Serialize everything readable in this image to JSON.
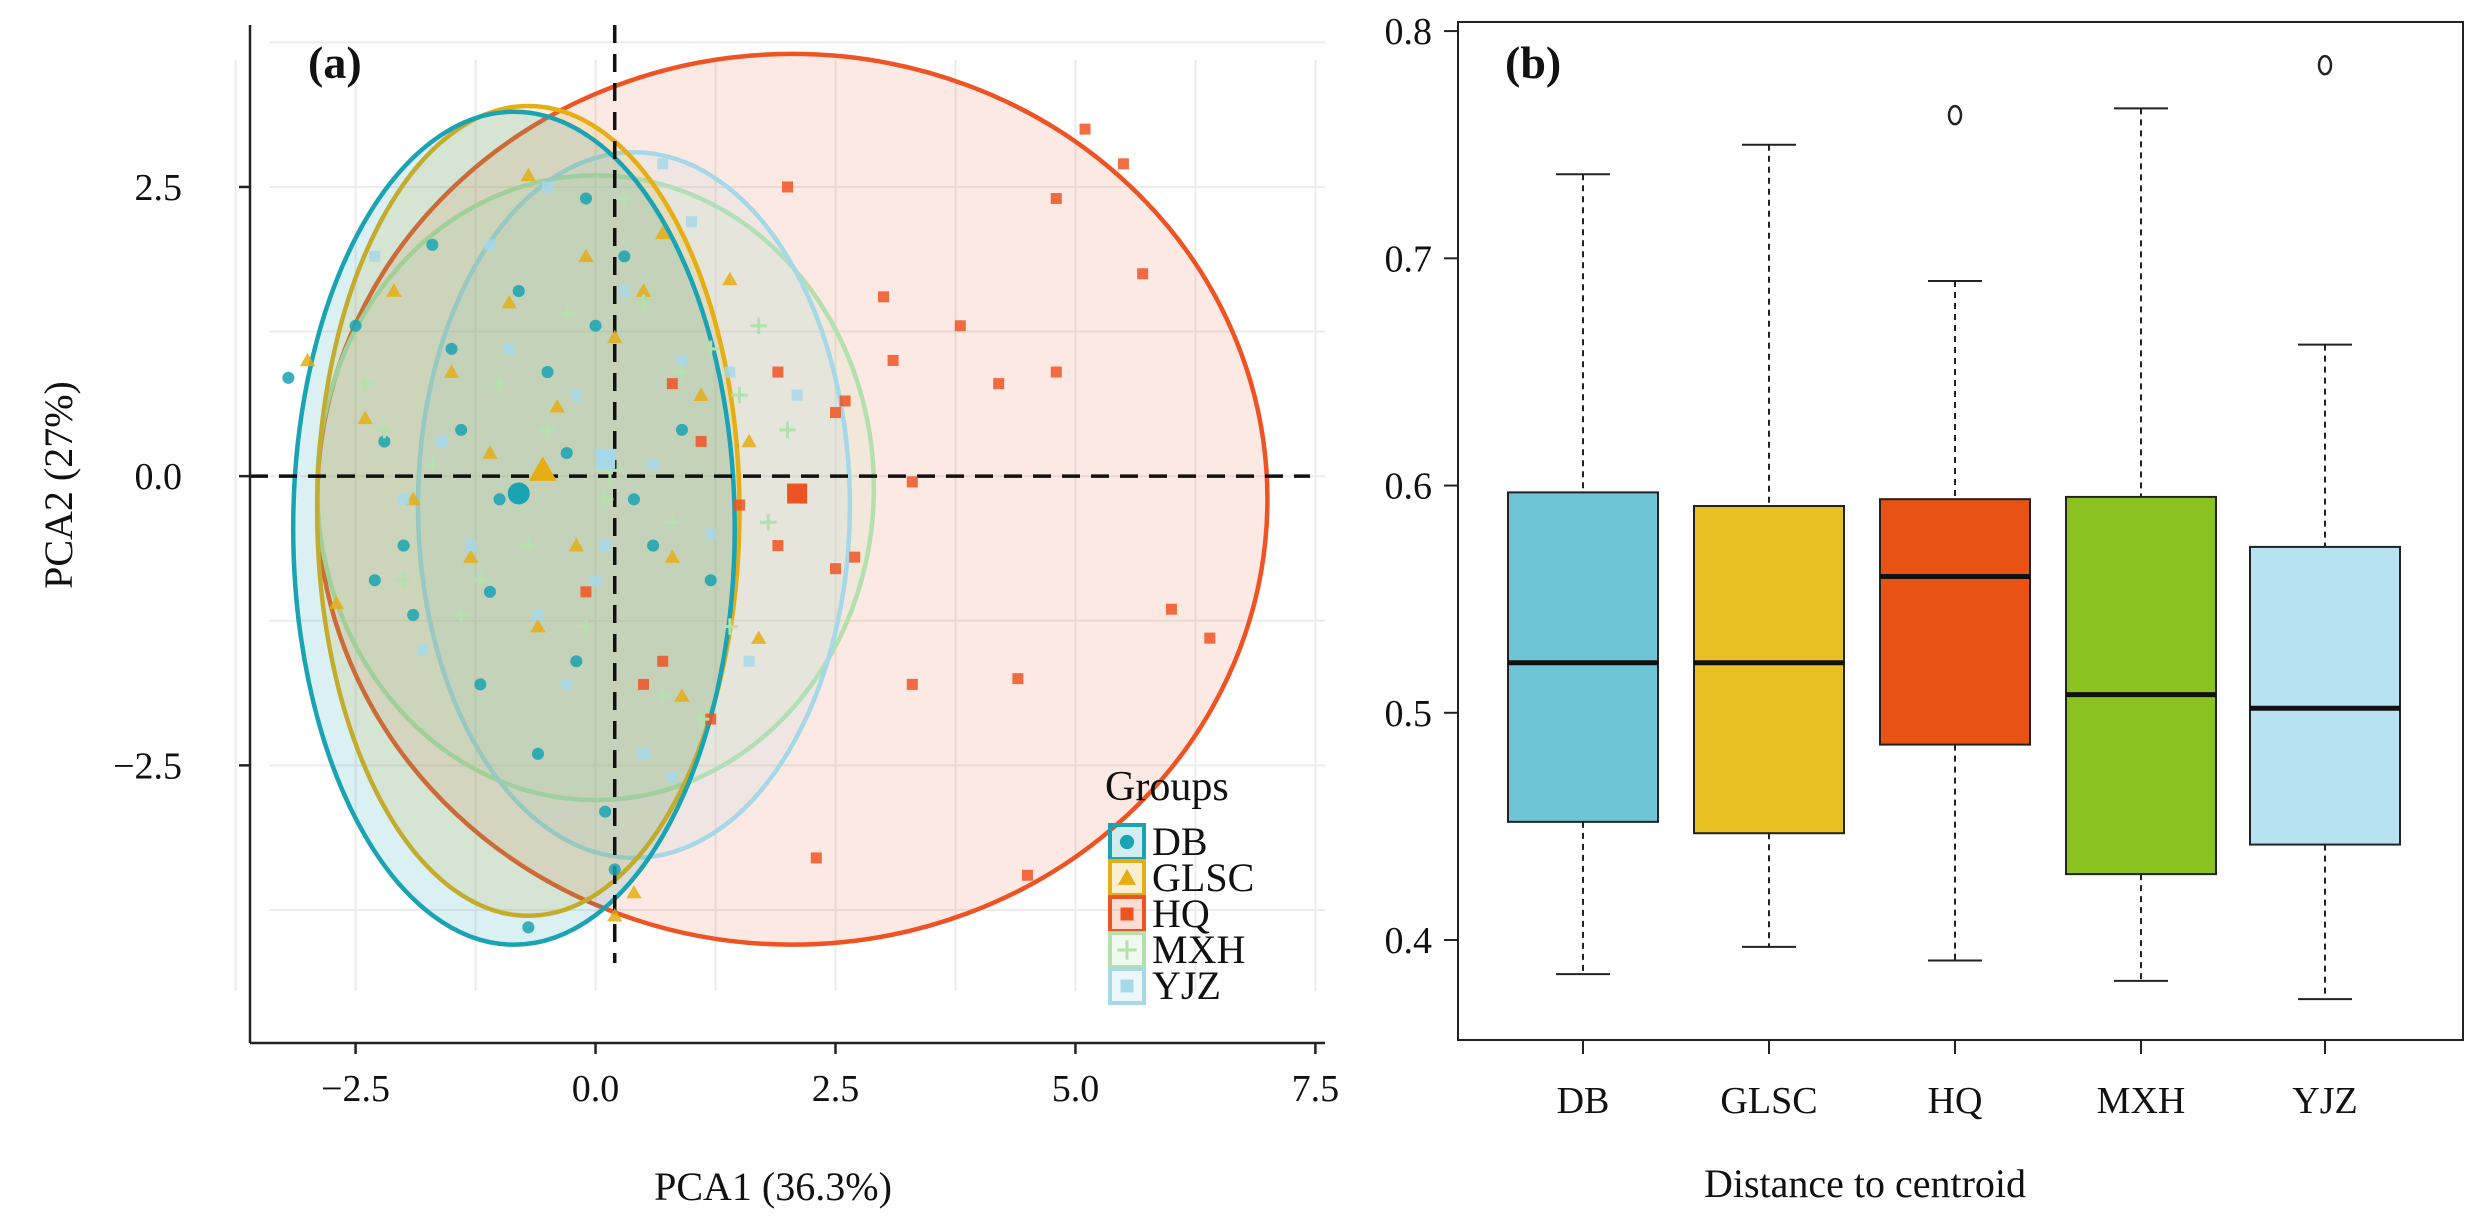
{
  "colors": {
    "DB": "#1aa3b2",
    "GLSC": "#e4ae14",
    "HQ": "#ee5324",
    "MXH": "#b4e0ad",
    "YJZ": "#a6d8e8",
    "box_DB": "#6cc6d6",
    "box_GLSC": "#e8c022",
    "box_HQ": "#e85313",
    "box_MXH": "#8bc21f",
    "box_YJZ": "#b8e1f2"
  },
  "chart_data": [
    {
      "type": "scatter",
      "panel_label": "(a)",
      "title": "",
      "xlabel": "PCA1 (36.3%)",
      "ylabel": "PCA2 (27%)",
      "xlim": [
        -3.6,
        7.6
      ],
      "ylim": [
        -4.9,
        3.9
      ],
      "xticks": [
        -2.5,
        0.0,
        2.5,
        5.0,
        7.5
      ],
      "xtick_labels": [
        "−2.5",
        "0.0",
        "2.5",
        "5.0",
        "7.5"
      ],
      "yticks": [
        -2.5,
        0.0,
        2.5
      ],
      "ytick_labels": [
        "−2.5",
        "0.0",
        "2.5"
      ],
      "reference_lines": {
        "x": 0.2,
        "y": 0.0
      },
      "legend": {
        "title": "Groups",
        "position": "bottom-right",
        "entries": [
          "DB",
          "GLSC",
          "HQ",
          "MXH",
          "YJZ"
        ]
      },
      "ellipses": [
        {
          "group": "DB",
          "cx": -0.85,
          "cy": -0.45,
          "rx": 2.3,
          "ry": 3.6
        },
        {
          "group": "GLSC",
          "cx": -0.7,
          "cy": -0.3,
          "rx": 2.2,
          "ry": 3.5
        },
        {
          "group": "HQ",
          "cx": 2.05,
          "cy": -0.2,
          "rx": 4.95,
          "ry": 3.85
        },
        {
          "group": "MXH",
          "cx": 0.0,
          "cy": -0.1,
          "rx": 2.9,
          "ry": 2.7
        },
        {
          "group": "YJZ",
          "cx": 0.4,
          "cy": -0.25,
          "rx": 2.25,
          "ry": 3.05
        }
      ],
      "centroids": [
        {
          "group": "DB",
          "x": -0.8,
          "y": -0.15
        },
        {
          "group": "GLSC",
          "x": -0.55,
          "y": 0.05
        },
        {
          "group": "HQ",
          "x": 2.1,
          "y": -0.15
        },
        {
          "group": "MXH",
          "x": 0.15,
          "y": 0.05
        },
        {
          "group": "YJZ",
          "x": 0.1,
          "y": 0.15
        }
      ],
      "series": [
        {
          "name": "DB",
          "marker": "circle",
          "points": [
            [
              -3.2,
              0.85
            ],
            [
              -0.7,
              -3.9
            ],
            [
              -2.5,
              1.3
            ],
            [
              -1.9,
              -1.2
            ],
            [
              -1.4,
              0.4
            ],
            [
              -1.0,
              -0.2
            ],
            [
              -0.5,
              0.9
            ],
            [
              -0.2,
              -1.6
            ],
            [
              0.3,
              1.9
            ],
            [
              0.6,
              -0.6
            ],
            [
              -1.7,
              2.0
            ],
            [
              -2.2,
              0.3
            ],
            [
              -1.2,
              -1.8
            ],
            [
              -0.6,
              -2.4
            ],
            [
              0.0,
              1.3
            ],
            [
              0.9,
              0.4
            ],
            [
              -0.3,
              0.2
            ],
            [
              -1.5,
              1.1
            ],
            [
              -2.0,
              -0.6
            ],
            [
              0.4,
              -0.2
            ],
            [
              0.2,
              -3.4
            ],
            [
              -0.8,
              1.6
            ],
            [
              -1.1,
              -1.0
            ],
            [
              0.1,
              -2.9
            ],
            [
              1.2,
              -0.9
            ],
            [
              -2.3,
              -0.9
            ],
            [
              -0.1,
              2.4
            ]
          ]
        },
        {
          "name": "GLSC",
          "marker": "triangle",
          "points": [
            [
              -3.0,
              1.0
            ],
            [
              -2.1,
              1.6
            ],
            [
              -1.5,
              0.9
            ],
            [
              -0.9,
              1.5
            ],
            [
              -0.4,
              0.6
            ],
            [
              0.2,
              1.2
            ],
            [
              0.8,
              -0.7
            ],
            [
              1.4,
              1.7
            ],
            [
              -0.6,
              -1.3
            ],
            [
              -1.9,
              -0.2
            ],
            [
              -2.4,
              0.5
            ],
            [
              -1.1,
              0.2
            ],
            [
              0.5,
              1.6
            ],
            [
              1.1,
              0.7
            ],
            [
              0.9,
              -1.9
            ],
            [
              -0.2,
              -0.6
            ],
            [
              0.4,
              -3.6
            ],
            [
              0.2,
              -3.8
            ],
            [
              -0.7,
              2.6
            ],
            [
              1.6,
              0.3
            ],
            [
              -1.3,
              -0.7
            ],
            [
              -0.1,
              1.9
            ],
            [
              0.7,
              2.1
            ],
            [
              1.7,
              -1.4
            ],
            [
              -2.7,
              -1.1
            ]
          ]
        },
        {
          "name": "HQ",
          "marker": "square",
          "points": [
            [
              2.0,
              2.5
            ],
            [
              3.0,
              1.55
            ],
            [
              3.8,
              1.3
            ],
            [
              4.8,
              2.4
            ],
            [
              5.1,
              3.0
            ],
            [
              5.5,
              2.7
            ],
            [
              5.7,
              1.75
            ],
            [
              4.2,
              0.8
            ],
            [
              4.8,
              0.9
            ],
            [
              3.1,
              1.0
            ],
            [
              3.3,
              -0.05
            ],
            [
              6.0,
              -1.15
            ],
            [
              6.4,
              -1.4
            ],
            [
              3.3,
              -1.8
            ],
            [
              4.4,
              -1.75
            ],
            [
              4.5,
              -3.45
            ],
            [
              2.3,
              -3.3
            ],
            [
              2.5,
              -0.8
            ],
            [
              2.6,
              0.65
            ],
            [
              2.5,
              0.55
            ],
            [
              1.9,
              0.9
            ],
            [
              1.9,
              -0.6
            ],
            [
              1.2,
              -2.1
            ],
            [
              0.7,
              -1.6
            ],
            [
              0.8,
              0.8
            ],
            [
              1.5,
              -0.25
            ],
            [
              2.7,
              -0.7
            ],
            [
              -0.1,
              -1.0
            ],
            [
              1.1,
              0.3
            ],
            [
              0.5,
              -1.8
            ]
          ]
        },
        {
          "name": "MXH",
          "marker": "plus",
          "points": [
            [
              -2.4,
              0.8
            ],
            [
              -2.0,
              -0.9
            ],
            [
              -1.7,
              0.1
            ],
            [
              -1.4,
              -1.2
            ],
            [
              -1.0,
              0.8
            ],
            [
              -0.7,
              -0.6
            ],
            [
              -0.3,
              1.4
            ],
            [
              0.1,
              -0.2
            ],
            [
              0.5,
              1.5
            ],
            [
              0.8,
              -0.4
            ],
            [
              1.2,
              1.1
            ],
            [
              1.5,
              0.7
            ],
            [
              1.8,
              -0.4
            ],
            [
              2.0,
              0.4
            ],
            [
              -0.1,
              -1.3
            ],
            [
              0.7,
              -1.9
            ],
            [
              1.1,
              -2.1
            ],
            [
              -1.2,
              -0.9
            ],
            [
              -2.2,
              0.4
            ],
            [
              0.3,
              2.4
            ],
            [
              1.4,
              -1.3
            ],
            [
              -0.5,
              0.4
            ],
            [
              0.9,
              0.9
            ],
            [
              1.7,
              1.3
            ]
          ]
        },
        {
          "name": "YJZ",
          "marker": "square",
          "points": [
            [
              -2.3,
              1.9
            ],
            [
              -2.0,
              -0.2
            ],
            [
              -1.6,
              0.3
            ],
            [
              -1.3,
              -0.6
            ],
            [
              -0.9,
              1.1
            ],
            [
              -0.6,
              -1.2
            ],
            [
              -0.2,
              0.7
            ],
            [
              0.1,
              -0.6
            ],
            [
              0.3,
              1.6
            ],
            [
              0.6,
              0.1
            ],
            [
              0.9,
              1.0
            ],
            [
              1.2,
              -0.5
            ],
            [
              1.4,
              0.9
            ],
            [
              1.6,
              -1.6
            ],
            [
              0.5,
              -2.4
            ],
            [
              -0.5,
              2.5
            ],
            [
              -1.1,
              2.0
            ],
            [
              0.8,
              -2.6
            ],
            [
              2.1,
              0.7
            ],
            [
              -1.8,
              -1.5
            ],
            [
              0.0,
              -0.9
            ],
            [
              0.7,
              2.7
            ],
            [
              -0.3,
              -1.8
            ],
            [
              1.0,
              2.2
            ]
          ]
        }
      ]
    },
    {
      "type": "box",
      "panel_label": "(b)",
      "title": "",
      "xlabel": "Distance to centroid",
      "ylabel": "",
      "ylim": [
        0.356,
        0.804
      ],
      "yticks": [
        0.4,
        0.5,
        0.6,
        0.7,
        0.8
      ],
      "ytick_labels": [
        "0.4",
        "0.5",
        "0.6",
        "0.7",
        "0.8"
      ],
      "categories": [
        "DB",
        "GLSC",
        "HQ",
        "MXH",
        "YJZ"
      ],
      "boxes": [
        {
          "name": "DB",
          "min": 0.385,
          "q1": 0.452,
          "median": 0.522,
          "q3": 0.597,
          "max": 0.737,
          "outliers": []
        },
        {
          "name": "GLSC",
          "min": 0.397,
          "q1": 0.447,
          "median": 0.522,
          "q3": 0.591,
          "max": 0.75,
          "outliers": []
        },
        {
          "name": "HQ",
          "min": 0.391,
          "q1": 0.486,
          "median": 0.56,
          "q3": 0.594,
          "max": 0.69,
          "outliers": [
            0.763
          ]
        },
        {
          "name": "MXH",
          "min": 0.382,
          "q1": 0.429,
          "median": 0.508,
          "q3": 0.595,
          "max": 0.766,
          "outliers": []
        },
        {
          "name": "YJZ",
          "min": 0.374,
          "q1": 0.442,
          "median": 0.502,
          "q3": 0.573,
          "max": 0.662,
          "outliers": [
            0.785
          ]
        }
      ]
    }
  ]
}
